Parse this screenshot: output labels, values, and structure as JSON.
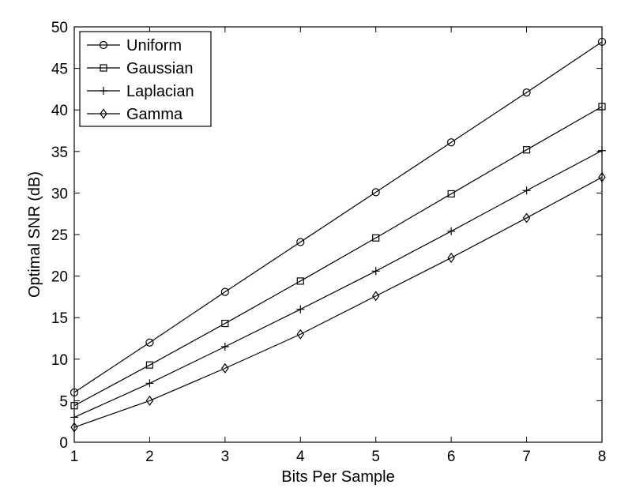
{
  "chart_data": {
    "type": "line",
    "title": "",
    "xlabel": "Bits Per Sample",
    "ylabel": "Optimal SNR (dB)",
    "xlim": [
      1,
      8
    ],
    "ylim": [
      0,
      50
    ],
    "xticks": [
      1,
      2,
      3,
      4,
      5,
      6,
      7,
      8
    ],
    "yticks": [
      0,
      5,
      10,
      15,
      20,
      25,
      30,
      35,
      40,
      45,
      50
    ],
    "grid": false,
    "legend_position": "top-left",
    "x": [
      1,
      2,
      3,
      4,
      5,
      6,
      7,
      8
    ],
    "series": [
      {
        "name": "Uniform",
        "marker": "circle",
        "values": [
          6.0,
          12.0,
          18.1,
          24.1,
          30.1,
          36.1,
          42.1,
          48.2
        ]
      },
      {
        "name": "Gaussian",
        "marker": "square",
        "values": [
          4.4,
          9.3,
          14.3,
          19.4,
          24.6,
          29.9,
          35.2,
          40.4
        ]
      },
      {
        "name": "Laplacian",
        "marker": "plus",
        "values": [
          3.0,
          7.1,
          11.5,
          16.0,
          20.6,
          25.4,
          30.3,
          35.1
        ]
      },
      {
        "name": "Gamma",
        "marker": "diamond",
        "values": [
          1.8,
          5.0,
          8.9,
          13.0,
          17.6,
          22.2,
          27.0,
          31.9
        ]
      }
    ]
  }
}
